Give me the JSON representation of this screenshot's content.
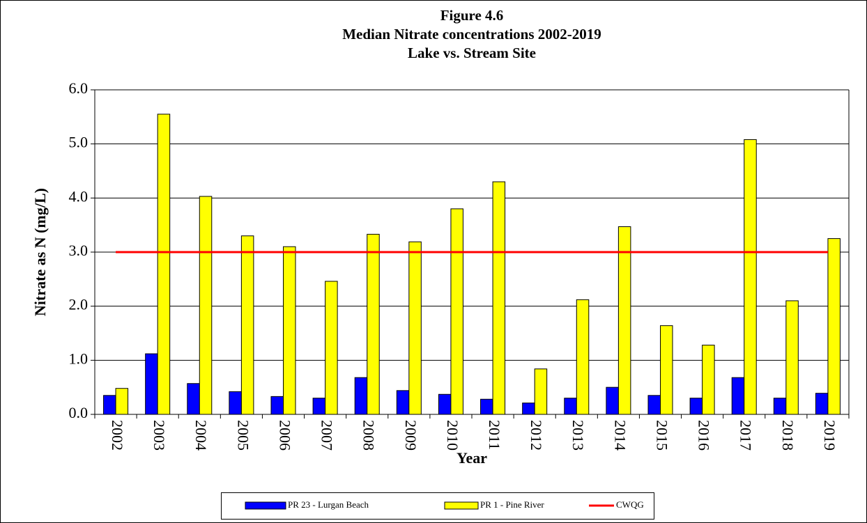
{
  "chart_data": {
    "type": "bar",
    "title": [
      "Figure 4.6",
      "Median Nitrate concentrations 2002-2019",
      "Lake vs. Stream Site"
    ],
    "x_label": "Year",
    "y_label": "Nitrate as N (mg/L)",
    "categories": [
      "2002",
      "2003",
      "2004",
      "2005",
      "2006",
      "2007",
      "2008",
      "2009",
      "2010",
      "2011",
      "2012",
      "2013",
      "2014",
      "2015",
      "2016",
      "2017",
      "2018",
      "2019"
    ],
    "series": [
      {
        "name": "PR 23 - Lurgan Beach",
        "color": "#0000ff",
        "type": "bar",
        "values": [
          0.35,
          1.12,
          0.57,
          0.42,
          0.33,
          0.3,
          0.68,
          0.44,
          0.37,
          0.28,
          0.21,
          0.3,
          0.5,
          0.35,
          0.3,
          0.68,
          0.3,
          0.39
        ]
      },
      {
        "name": "PR 1 - Pine River",
        "color": "#ffff00",
        "type": "bar",
        "values": [
          0.48,
          5.55,
          4.03,
          3.3,
          3.1,
          2.46,
          3.33,
          3.19,
          3.8,
          4.3,
          0.84,
          2.12,
          3.47,
          1.64,
          1.28,
          5.08,
          2.1,
          3.25
        ]
      },
      {
        "name": "CWQG",
        "color": "#ff0000",
        "type": "line",
        "values": [
          3,
          3,
          3,
          3,
          3,
          3,
          3,
          3,
          3,
          3,
          3,
          3,
          3,
          3,
          3,
          3,
          3,
          3
        ]
      }
    ],
    "ylim": [
      0,
      6
    ],
    "yticks": [
      {
        "value": 0,
        "label": "0.0"
      },
      {
        "value": 1,
        "label": "1.0"
      },
      {
        "value": 2,
        "label": "2.0"
      },
      {
        "value": 3,
        "label": "3.0"
      },
      {
        "value": 4,
        "label": "4.0"
      },
      {
        "value": 5,
        "label": "5.0"
      },
      {
        "value": 6,
        "label": "6.0"
      }
    ],
    "grid": true,
    "legend": "bottom"
  }
}
